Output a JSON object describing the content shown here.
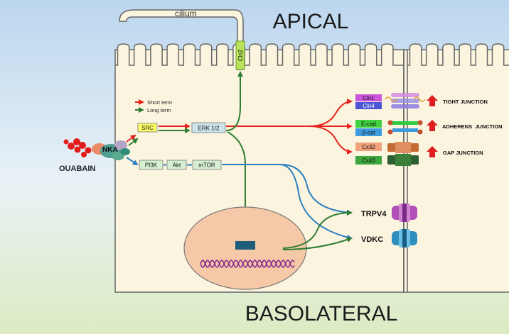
{
  "regions": {
    "apical": "APICAL",
    "basolateral": "BASOLATERAL"
  },
  "cilium": {
    "label": "cilium",
    "protein": "Cln2"
  },
  "legend": {
    "short_term": "Short term",
    "long_term": "Long term"
  },
  "stimulus": {
    "drug": "OUABAIN",
    "pump": "NKA"
  },
  "pathway": {
    "src": "SRC",
    "erk": "ERK 1/2",
    "pi3k": "PI3K",
    "akt": "Akt",
    "mtor": "mTOR"
  },
  "junction_proteins": {
    "cln1": "Cln1",
    "cln4": "Cln4",
    "ecad": "E-cad",
    "bcat": "β-cat",
    "cx32": "Cx32",
    "cx43": "Cx43"
  },
  "junctions": {
    "tight": "TIGHT JUNCTION",
    "adherens": "ADHERENS  JUNCTION",
    "gap": "GAP JUNCTION"
  },
  "channels": {
    "trpv4": "TRPV4",
    "vdkc": "VDKC"
  },
  "colors": {
    "short_term": "#e8231e",
    "long_term": "#2e7d32",
    "blue_path": "#2a7fc1",
    "up_arrow": "#e02020"
  }
}
